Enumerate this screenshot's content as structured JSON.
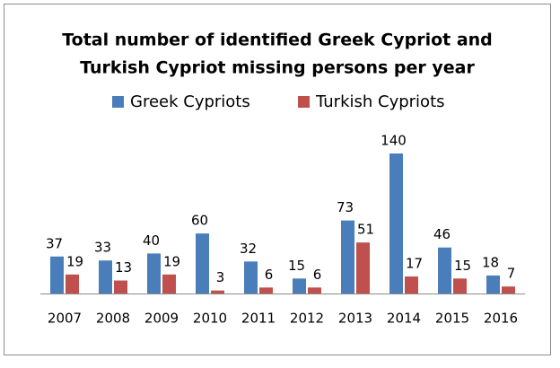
{
  "chart_data": {
    "type": "bar",
    "title": [
      "Total number of identified Greek Cypriot and",
      "Turkish Cypriot missing persons per year"
    ],
    "categories": [
      "2007",
      "2008",
      "2009",
      "2010",
      "2011",
      "2012",
      "2013",
      "2014",
      "2015",
      "2016"
    ],
    "series": [
      {
        "name": "Greek Cypriots",
        "color": "#4a7ebb",
        "values": [
          37,
          33,
          40,
          60,
          32,
          15,
          73,
          140,
          46,
          18
        ]
      },
      {
        "name": "Turkish Cypriots",
        "color": "#c0504d",
        "values": [
          19,
          13,
          19,
          3,
          6,
          6,
          51,
          17,
          15,
          7
        ]
      }
    ],
    "legend": "top"
  }
}
